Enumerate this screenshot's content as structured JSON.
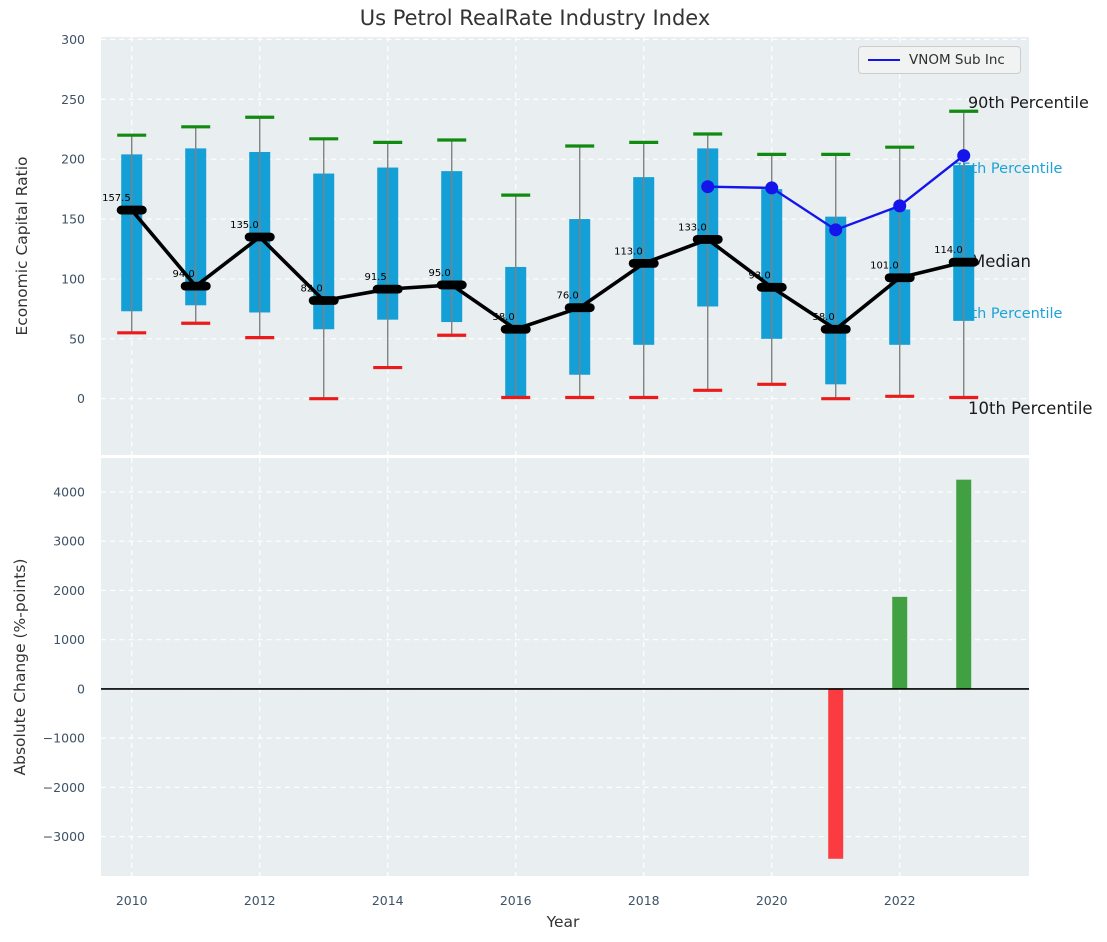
{
  "figure": {
    "title": "Us Petrol RealRate Industry Index",
    "xlabel": "Year"
  },
  "legend": {
    "label": "VNOM Sub Inc"
  },
  "colors": {
    "plot_bg": "#e9eef0",
    "grid": "#ffffff",
    "tick": "#3e5266",
    "title": "#333333",
    "box": "#149fd6",
    "whisker": "#828282",
    "cap_high": "#128a12",
    "cap_low": "#ec1b1b",
    "median": "#000000",
    "vnom_line": "#1414eb",
    "bar_pos": "#41a042",
    "bar_neg": "#fa3c41",
    "annotation_cyan": "#1ca3d8",
    "annotation_black": "#1a1a1a",
    "zero_line": "#000000"
  },
  "chart_data": [
    {
      "type": "boxplot-timeseries",
      "title": "Us Petrol RealRate Industry Index",
      "ylabel": "Economic Capital Ratio",
      "xlabel": "Year",
      "years": [
        2010,
        2011,
        2012,
        2013,
        2014,
        2015,
        2016,
        2017,
        2018,
        2019,
        2020,
        2021,
        2022,
        2023
      ],
      "p90": [
        220,
        227,
        235,
        217,
        214,
        216,
        170,
        211,
        214,
        221,
        204,
        204,
        210,
        240
      ],
      "p75": [
        204,
        209,
        206,
        188,
        193,
        190,
        110,
        150,
        185,
        209,
        175,
        152,
        158,
        195
      ],
      "median": [
        157.5,
        94,
        135,
        82,
        91.5,
        95,
        58,
        76,
        113,
        133,
        93,
        58,
        101,
        114
      ],
      "p25": [
        73,
        78,
        72,
        58,
        66,
        64,
        2,
        20,
        45,
        77,
        50,
        12,
        45,
        65
      ],
      "p10": [
        55,
        63,
        51,
        0,
        26,
        53,
        1,
        1,
        1,
        7,
        12,
        0,
        2,
        1
      ],
      "median_labels": [
        "157.5",
        "94.0",
        "135.0",
        "82.0",
        "91.5",
        "95.0",
        "58.0",
        "76.0",
        "113.0",
        "133.0",
        "93.0",
        "58.0",
        "101.0",
        "114.0"
      ],
      "series": [
        {
          "name": "VNOM Sub Inc",
          "years": [
            2019,
            2020,
            2021,
            2022,
            2023
          ],
          "values": [
            177,
            176,
            141,
            161,
            203
          ]
        }
      ],
      "annotations": [
        {
          "label": "90th Percentile",
          "style": "black"
        },
        {
          "label": "75th Percentile",
          "style": "cyan"
        },
        {
          "label": "Median",
          "style": "black"
        },
        {
          "label": "25th Percentile",
          "style": "cyan"
        },
        {
          "label": "10th Percentile",
          "style": "black"
        }
      ],
      "yticks": [
        0,
        50,
        100,
        150,
        200,
        250,
        300
      ],
      "xticks": [
        2010,
        2012,
        2014,
        2016,
        2018,
        2020,
        2022
      ],
      "ylim": [
        -47,
        302
      ],
      "xlim": [
        2009.52,
        2024.02
      ],
      "grid": "white-dashed",
      "legend_position": "upper right"
    },
    {
      "type": "bar",
      "ylabel": "Absolute Change (%-points)",
      "xlabel": "Year",
      "categories": [
        2010,
        2011,
        2012,
        2013,
        2014,
        2015,
        2016,
        2017,
        2018,
        2019,
        2020,
        2021,
        2022,
        2023
      ],
      "values": [
        null,
        null,
        null,
        null,
        null,
        null,
        null,
        null,
        null,
        null,
        null,
        -3450,
        1870,
        4250
      ],
      "yticks": [
        -3000,
        -2000,
        -1000,
        0,
        1000,
        2000,
        3000,
        4000
      ],
      "xticks": [
        2010,
        2012,
        2014,
        2016,
        2018,
        2020,
        2022
      ],
      "ylim": [
        -3800,
        4690
      ],
      "xlim": [
        2009.52,
        2024.02
      ],
      "grid": "white-dashed",
      "zero_line": true
    }
  ]
}
